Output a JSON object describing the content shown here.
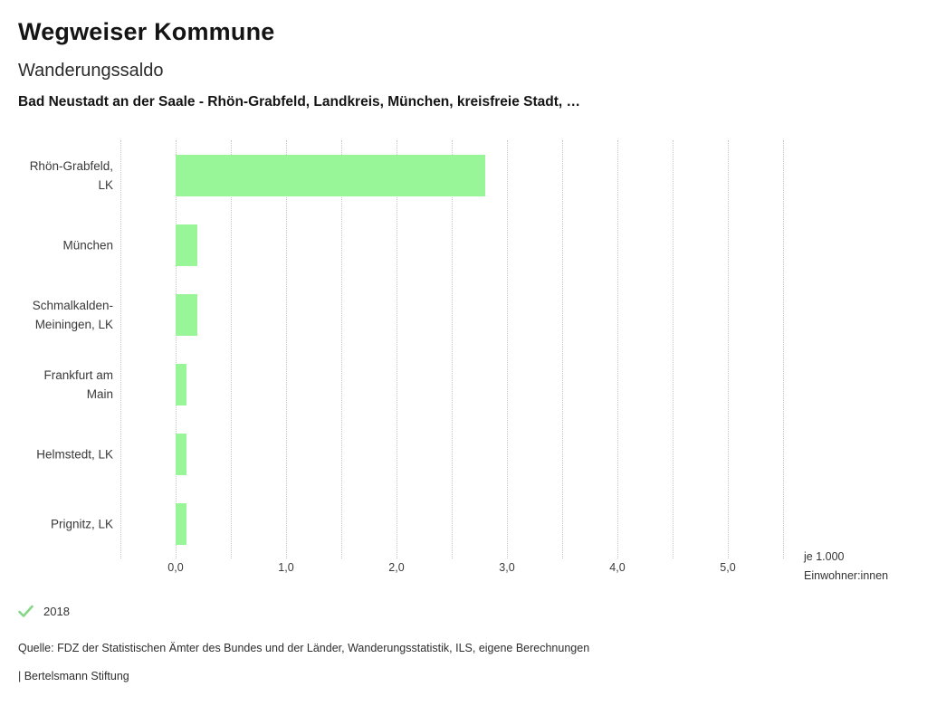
{
  "header": {
    "title": "Wegweiser Kommune",
    "subtitle": "Wanderungssaldo",
    "region_line": "Bad Neustadt an der Saale - Rhön-Grabfeld, Landkreis, München, kreisfreie Stadt, …"
  },
  "chart_data": {
    "type": "bar",
    "orientation": "horizontal",
    "title": "Wanderungssaldo",
    "categories": [
      "Rhön-Grabfeld, LK",
      "München",
      "Schmalkalden-Meiningen, LK",
      "Frankfurt am Main",
      "Helmstedt, LK",
      "Prignitz, LK"
    ],
    "category_label_lines": [
      [
        "Rhön-Grabfeld,",
        "LK"
      ],
      [
        "München"
      ],
      [
        "Schmalkalden-",
        "Meiningen, LK"
      ],
      [
        "Frankfurt am",
        "Main"
      ],
      [
        "Helmstedt, LK"
      ],
      [
        "Prignitz, LK"
      ]
    ],
    "values": [
      2.8,
      0.2,
      0.2,
      0.1,
      0.1,
      0.1
    ],
    "series_year": "2018",
    "xlim": [
      -0.5,
      5.5
    ],
    "gridline_step": 0.5,
    "grid": "vertical-dotted",
    "x_ticks": [
      {
        "v": 0,
        "label": "0,0"
      },
      {
        "v": 1,
        "label": "1,0"
      },
      {
        "v": 2,
        "label": "2,0"
      },
      {
        "v": 3,
        "label": "3,0"
      },
      {
        "v": 4,
        "label": "4,0"
      },
      {
        "v": 5,
        "label": "5,0"
      }
    ],
    "unit_label_lines": [
      "je 1.000",
      "Einwohner:innen"
    ],
    "bar_color": "#98f598"
  },
  "legend": {
    "check_icon": "check-icon",
    "check_color": "#85d685",
    "year": "2018"
  },
  "footer": {
    "source": "Quelle: FDZ der Statistischen Ämter des Bundes und der Länder, Wanderungsstatistik, ILS, eigene Berechnungen",
    "brand": "| Bertelsmann Stiftung"
  }
}
